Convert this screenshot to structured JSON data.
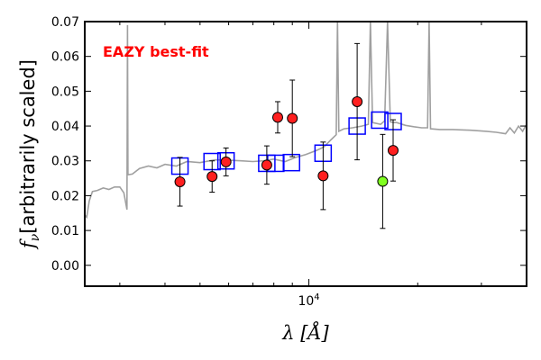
{
  "chart_data": {
    "type": "scatter",
    "title": "",
    "annotation": "EAZY best-fit",
    "annotation_color": "#ff0000",
    "xlabel": "λ [Å]",
    "ylabel_symbol": "f",
    "ylabel_sub": "ν",
    "ylabel_text": "[arbitrarily scaled]",
    "x_scale": "log",
    "xlim": [
      2400,
      40000
    ],
    "ylim": [
      -0.006,
      0.07
    ],
    "x_major_tick": {
      "value": 10000,
      "label_base": "10",
      "label_exp": "4"
    },
    "x_minor_ticks": [
      3000,
      4000,
      5000,
      6000,
      7000,
      8000,
      9000,
      20000,
      30000
    ],
    "y_ticks": [
      0.0,
      0.01,
      0.02,
      0.03,
      0.04,
      0.05,
      0.06,
      0.07
    ],
    "y_tick_labels": [
      "0.00",
      "0.01",
      "0.02",
      "0.03",
      "0.04",
      "0.05",
      "0.06",
      "0.07"
    ],
    "grid": false,
    "template_color": "#a0a0a0",
    "model_color": "#0000ff",
    "point_color": "#ff2020",
    "highlight_color": "#80ff20",
    "template": [
      [
        2400,
        0.0145
      ],
      [
        2430,
        0.0138
      ],
      [
        2470,
        0.0185
      ],
      [
        2520,
        0.0212
      ],
      [
        2600,
        0.0215
      ],
      [
        2700,
        0.0222
      ],
      [
        2800,
        0.0218
      ],
      [
        2900,
        0.0225
      ],
      [
        3000,
        0.0225
      ],
      [
        3080,
        0.0208
      ],
      [
        3140,
        0.016
      ],
      [
        3150,
        0.069
      ],
      [
        3160,
        0.026
      ],
      [
        3250,
        0.0262
      ],
      [
        3400,
        0.0278
      ],
      [
        3600,
        0.0285
      ],
      [
        3800,
        0.028
      ],
      [
        4000,
        0.029
      ],
      [
        4300,
        0.0285
      ],
      [
        4600,
        0.0298
      ],
      [
        5000,
        0.0295
      ],
      [
        5500,
        0.0303
      ],
      [
        6000,
        0.0302
      ],
      [
        6500,
        0.03
      ],
      [
        7000,
        0.0298
      ],
      [
        7500,
        0.03
      ],
      [
        8000,
        0.0305
      ],
      [
        8600,
        0.0298
      ],
      [
        9200,
        0.031
      ],
      [
        9800,
        0.0318
      ],
      [
        10500,
        0.033
      ],
      [
        11000,
        0.034
      ],
      [
        11500,
        0.036
      ],
      [
        11900,
        0.0375
      ],
      [
        12000,
        0.07
      ],
      [
        12100,
        0.0385
      ],
      [
        12500,
        0.0392
      ],
      [
        13200,
        0.0395
      ],
      [
        14000,
        0.04
      ],
      [
        14600,
        0.0405
      ],
      [
        14800,
        0.07
      ],
      [
        15000,
        0.041
      ],
      [
        15800,
        0.0405
      ],
      [
        16200,
        0.0415
      ],
      [
        16500,
        0.07
      ],
      [
        16800,
        0.0412
      ],
      [
        17200,
        0.041
      ],
      [
        17500,
        0.041
      ],
      [
        18500,
        0.0402
      ],
      [
        19500,
        0.0398
      ],
      [
        20500,
        0.0395
      ],
      [
        21300,
        0.0395
      ],
      [
        21500,
        0.07
      ],
      [
        21700,
        0.0392
      ],
      [
        23000,
        0.039
      ],
      [
        25000,
        0.039
      ],
      [
        28000,
        0.0388
      ],
      [
        31000,
        0.0385
      ],
      [
        33000,
        0.0382
      ],
      [
        35000,
        0.0378
      ],
      [
        36000,
        0.0395
      ],
      [
        37000,
        0.038
      ],
      [
        38000,
        0.04
      ],
      [
        39000,
        0.0385
      ],
      [
        40000,
        0.0405
      ]
    ],
    "model_photometry": [
      [
        4400,
        0.0285
      ],
      [
        5400,
        0.0298
      ],
      [
        5900,
        0.03
      ],
      [
        7650,
        0.0293
      ],
      [
        8100,
        0.0293
      ],
      [
        8950,
        0.0295
      ],
      [
        10950,
        0.0322
      ],
      [
        13600,
        0.04
      ],
      [
        15700,
        0.0417
      ],
      [
        17100,
        0.0413
      ]
    ],
    "observed": [
      {
        "x": 4400,
        "y": 0.024,
        "err": 0.007
      },
      {
        "x": 5400,
        "y": 0.0255,
        "err": 0.0045
      },
      {
        "x": 5900,
        "y": 0.0297,
        "err": 0.004
      },
      {
        "x": 7650,
        "y": 0.0288,
        "err": 0.0055
      },
      {
        "x": 8200,
        "y": 0.0425,
        "err": 0.0045
      },
      {
        "x": 9000,
        "y": 0.0422,
        "err": 0.011
      },
      {
        "x": 10950,
        "y": 0.0257,
        "err": 0.0097
      },
      {
        "x": 13600,
        "y": 0.047,
        "err": 0.0167
      },
      {
        "x": 16000,
        "y": 0.0241,
        "err": 0.0135,
        "highlight": true
      },
      {
        "x": 17100,
        "y": 0.033,
        "err": 0.0088
      }
    ]
  }
}
